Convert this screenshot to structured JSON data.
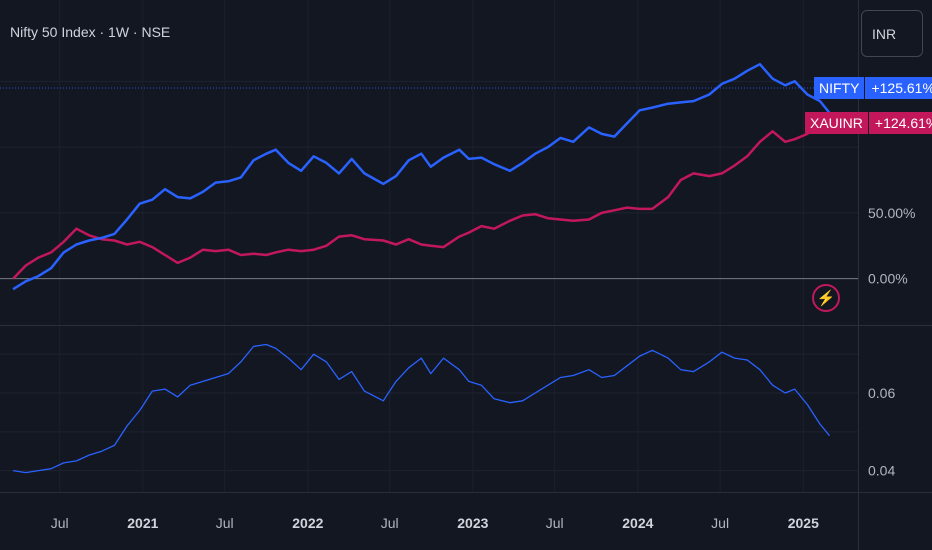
{
  "header": {
    "title": "Nifty 50 Index · 1W · NSE",
    "currency_button": "INR"
  },
  "badges": {
    "nifty": {
      "name": "NIFTY",
      "value": "+125.61%"
    },
    "xau": {
      "name": "XAUINR",
      "value": "+124.61%"
    }
  },
  "icons": {
    "alert": "lightning-bolt-icon"
  },
  "colors": {
    "background": "#131722",
    "nifty": "#2962ff",
    "xau": "#c2185b",
    "ratio": "#2962ff"
  },
  "chart_data": [
    {
      "type": "line",
      "title": "",
      "x_unit": "date",
      "y_unit": "percent change",
      "ylim": [
        -20,
        170
      ],
      "y_ticks": [
        {
          "value": 0,
          "label": "0.00%"
        },
        {
          "value": 50,
          "label": "50.00%"
        }
      ],
      "x_ticks": [
        "Jul",
        "2021",
        "Jul",
        "2022",
        "Jul",
        "2023",
        "Jul",
        "2024",
        "Jul",
        "2025"
      ],
      "grid": true,
      "series": [
        {
          "name": "NIFTY",
          "last_value_label": "+125.61%",
          "points": [
            [
              "2020-03-20",
              -8
            ],
            [
              "2020-04-17",
              -2
            ],
            [
              "2020-05-15",
              2
            ],
            [
              "2020-06-12",
              8
            ],
            [
              "2020-07-10",
              20
            ],
            [
              "2020-08-07",
              26
            ],
            [
              "2020-09-04",
              29
            ],
            [
              "2020-10-02",
              31
            ],
            [
              "2020-10-30",
              34
            ],
            [
              "2020-11-27",
              45
            ],
            [
              "2020-12-25",
              57
            ],
            [
              "2021-01-22",
              60
            ],
            [
              "2021-02-19",
              68
            ],
            [
              "2021-03-19",
              62
            ],
            [
              "2021-04-16",
              61
            ],
            [
              "2021-05-14",
              66
            ],
            [
              "2021-06-11",
              73
            ],
            [
              "2021-07-09",
              74
            ],
            [
              "2021-08-06",
              77
            ],
            [
              "2021-09-03",
              90
            ],
            [
              "2021-10-01",
              95
            ],
            [
              "2021-10-22",
              98
            ],
            [
              "2021-11-19",
              88
            ],
            [
              "2021-12-17",
              82
            ],
            [
              "2022-01-14",
              93
            ],
            [
              "2022-02-11",
              88
            ],
            [
              "2022-03-11",
              80
            ],
            [
              "2022-04-08",
              91
            ],
            [
              "2022-05-06",
              80
            ],
            [
              "2022-06-17",
              72
            ],
            [
              "2022-07-15",
              78
            ],
            [
              "2022-08-12",
              90
            ],
            [
              "2022-09-09",
              95
            ],
            [
              "2022-09-30",
              85
            ],
            [
              "2022-10-28",
              92
            ],
            [
              "2022-12-02",
              98
            ],
            [
              "2022-12-23",
              91
            ],
            [
              "2023-01-20",
              92
            ],
            [
              "2023-02-17",
              87
            ],
            [
              "2023-03-24",
              82
            ],
            [
              "2023-04-21",
              88
            ],
            [
              "2023-05-19",
              95
            ],
            [
              "2023-06-16",
              100
            ],
            [
              "2023-07-14",
              107
            ],
            [
              "2023-08-11",
              104
            ],
            [
              "2023-09-15",
              115
            ],
            [
              "2023-10-13",
              110
            ],
            [
              "2023-11-10",
              108
            ],
            [
              "2023-12-08",
              118
            ],
            [
              "2024-01-05",
              128
            ],
            [
              "2024-02-02",
              130
            ],
            [
              "2024-03-08",
              133
            ],
            [
              "2024-04-05",
              134
            ],
            [
              "2024-05-03",
              135
            ],
            [
              "2024-06-07",
              140
            ],
            [
              "2024-07-05",
              148
            ],
            [
              "2024-08-02",
              152
            ],
            [
              "2024-08-30",
              158
            ],
            [
              "2024-09-27",
              163
            ],
            [
              "2024-10-25",
              152
            ],
            [
              "2024-11-22",
              147
            ],
            [
              "2024-12-13",
              150
            ],
            [
              "2025-01-10",
              140
            ],
            [
              "2025-02-07",
              135
            ],
            [
              "2025-02-28",
              126
            ]
          ]
        },
        {
          "name": "XAUINR",
          "last_value_label": "+124.61%",
          "points": [
            [
              "2020-03-20",
              0
            ],
            [
              "2020-04-17",
              10
            ],
            [
              "2020-05-15",
              16
            ],
            [
              "2020-06-12",
              20
            ],
            [
              "2020-07-10",
              28
            ],
            [
              "2020-08-07",
              38
            ],
            [
              "2020-09-04",
              33
            ],
            [
              "2020-10-02",
              30
            ],
            [
              "2020-10-30",
              29
            ],
            [
              "2020-11-27",
              26
            ],
            [
              "2020-12-25",
              28
            ],
            [
              "2021-01-22",
              24
            ],
            [
              "2021-02-19",
              18
            ],
            [
              "2021-03-19",
              12
            ],
            [
              "2021-04-16",
              16
            ],
            [
              "2021-05-14",
              22
            ],
            [
              "2021-06-11",
              21
            ],
            [
              "2021-07-09",
              22
            ],
            [
              "2021-08-06",
              18
            ],
            [
              "2021-09-03",
              19
            ],
            [
              "2021-10-01",
              18
            ],
            [
              "2021-10-22",
              20
            ],
            [
              "2021-11-19",
              22
            ],
            [
              "2021-12-17",
              21
            ],
            [
              "2022-01-14",
              22
            ],
            [
              "2022-02-11",
              25
            ],
            [
              "2022-03-11",
              32
            ],
            [
              "2022-04-08",
              33
            ],
            [
              "2022-05-06",
              30
            ],
            [
              "2022-06-17",
              29
            ],
            [
              "2022-07-15",
              26
            ],
            [
              "2022-08-12",
              30
            ],
            [
              "2022-09-09",
              26
            ],
            [
              "2022-09-30",
              25
            ],
            [
              "2022-10-28",
              24
            ],
            [
              "2022-12-02",
              32
            ],
            [
              "2022-12-23",
              35
            ],
            [
              "2023-01-20",
              40
            ],
            [
              "2023-02-17",
              38
            ],
            [
              "2023-03-24",
              44
            ],
            [
              "2023-04-21",
              48
            ],
            [
              "2023-05-19",
              49
            ],
            [
              "2023-06-16",
              46
            ],
            [
              "2023-07-14",
              45
            ],
            [
              "2023-08-11",
              44
            ],
            [
              "2023-09-15",
              45
            ],
            [
              "2023-10-13",
              50
            ],
            [
              "2023-11-10",
              52
            ],
            [
              "2023-12-08",
              54
            ],
            [
              "2024-01-05",
              53
            ],
            [
              "2024-02-02",
              53
            ],
            [
              "2024-03-08",
              62
            ],
            [
              "2024-04-05",
              75
            ],
            [
              "2024-05-03",
              80
            ],
            [
              "2024-06-07",
              78
            ],
            [
              "2024-07-05",
              80
            ],
            [
              "2024-08-02",
              86
            ],
            [
              "2024-08-30",
              93
            ],
            [
              "2024-09-27",
              104
            ],
            [
              "2024-10-25",
              112
            ],
            [
              "2024-11-22",
              104
            ],
            [
              "2024-12-13",
              106
            ],
            [
              "2025-01-10",
              110
            ],
            [
              "2025-02-07",
              120
            ],
            [
              "2025-02-28",
              125
            ]
          ]
        }
      ]
    },
    {
      "type": "line",
      "title": "",
      "ylim": [
        0.0345,
        0.077
      ],
      "y_ticks": [
        {
          "value": 0.04,
          "label": "0.04"
        },
        {
          "value": 0.06,
          "label": "0.06"
        }
      ],
      "grid": true,
      "series": [
        {
          "name": "",
          "points": [
            [
              "2020-03-20",
              0.04
            ],
            [
              "2020-04-17",
              0.0395
            ],
            [
              "2020-05-15",
              0.04
            ],
            [
              "2020-06-12",
              0.0405
            ],
            [
              "2020-07-10",
              0.042
            ],
            [
              "2020-08-07",
              0.0425
            ],
            [
              "2020-09-04",
              0.044
            ],
            [
              "2020-10-02",
              0.045
            ],
            [
              "2020-10-30",
              0.0465
            ],
            [
              "2020-11-27",
              0.0515
            ],
            [
              "2020-12-25",
              0.0555
            ],
            [
              "2021-01-22",
              0.0605
            ],
            [
              "2021-02-19",
              0.061
            ],
            [
              "2021-03-19",
              0.059
            ],
            [
              "2021-04-16",
              0.062
            ],
            [
              "2021-05-14",
              0.063
            ],
            [
              "2021-06-11",
              0.064
            ],
            [
              "2021-07-09",
              0.065
            ],
            [
              "2021-08-06",
              0.068
            ],
            [
              "2021-09-03",
              0.072
            ],
            [
              "2021-10-01",
              0.0725
            ],
            [
              "2021-10-22",
              0.0715
            ],
            [
              "2021-11-19",
              0.069
            ],
            [
              "2021-12-17",
              0.066
            ],
            [
              "2022-01-14",
              0.07
            ],
            [
              "2022-02-11",
              0.068
            ],
            [
              "2022-03-11",
              0.0635
            ],
            [
              "2022-04-08",
              0.0655
            ],
            [
              "2022-05-06",
              0.0605
            ],
            [
              "2022-06-17",
              0.058
            ],
            [
              "2022-07-15",
              0.063
            ],
            [
              "2022-08-12",
              0.0665
            ],
            [
              "2022-09-09",
              0.069
            ],
            [
              "2022-09-30",
              0.065
            ],
            [
              "2022-10-28",
              0.069
            ],
            [
              "2022-12-02",
              0.066
            ],
            [
              "2022-12-23",
              0.063
            ],
            [
              "2023-01-20",
              0.062
            ],
            [
              "2023-02-17",
              0.0585
            ],
            [
              "2023-03-24",
              0.0575
            ],
            [
              "2023-04-21",
              0.058
            ],
            [
              "2023-05-19",
              0.06
            ],
            [
              "2023-06-16",
              0.062
            ],
            [
              "2023-07-14",
              0.064
            ],
            [
              "2023-08-11",
              0.0645
            ],
            [
              "2023-09-15",
              0.066
            ],
            [
              "2023-10-13",
              0.064
            ],
            [
              "2023-11-10",
              0.0645
            ],
            [
              "2023-12-08",
              0.067
            ],
            [
              "2024-01-05",
              0.0695
            ],
            [
              "2024-02-02",
              0.071
            ],
            [
              "2024-03-08",
              0.069
            ],
            [
              "2024-04-05",
              0.066
            ],
            [
              "2024-05-03",
              0.0655
            ],
            [
              "2024-06-07",
              0.068
            ],
            [
              "2024-07-05",
              0.0705
            ],
            [
              "2024-08-02",
              0.069
            ],
            [
              "2024-08-30",
              0.0685
            ],
            [
              "2024-09-27",
              0.066
            ],
            [
              "2024-10-25",
              0.062
            ],
            [
              "2024-11-22",
              0.06
            ],
            [
              "2024-12-13",
              0.061
            ],
            [
              "2025-01-10",
              0.057
            ],
            [
              "2025-02-07",
              0.052
            ],
            [
              "2025-02-28",
              0.049
            ]
          ]
        }
      ]
    }
  ]
}
